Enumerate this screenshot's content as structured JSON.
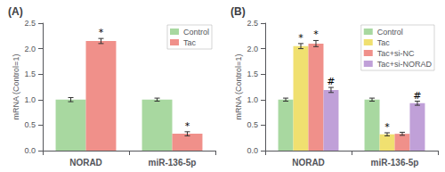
{
  "chart_data": [
    {
      "type": "bar",
      "title": "(A)",
      "ylabel": "mRNA (Control=1)",
      "categories": [
        "NORAD",
        "miR-136-5p"
      ],
      "series": [
        {
          "name": "Control",
          "color": "#a8d8a0",
          "values": [
            1.0,
            1.0
          ],
          "errors": [
            0.04,
            0.03
          ]
        },
        {
          "name": "Tac",
          "color": "#f0908a",
          "values": [
            2.15,
            0.33
          ],
          "errors": [
            0.05,
            0.04
          ]
        }
      ],
      "annotations": [
        {
          "text": "*",
          "series": "Tac",
          "category": "NORAD"
        },
        {
          "text": "*",
          "series": "Tac",
          "category": "miR-136-5p"
        }
      ],
      "ylim": [
        0,
        2.5
      ],
      "yticks": [
        {
          "value": 0,
          "label": "0.0"
        },
        0.5,
        {
          "value": 1,
          "label": "1.0"
        },
        1.5,
        {
          "value": 2,
          "label": "2.0"
        },
        2.5
      ],
      "legend": "upper right",
      "grid": false
    },
    {
      "type": "bar",
      "title": "(B)",
      "ylabel": "mRNA (Control=1)",
      "categories": [
        "NORAD",
        "miR-136-5p"
      ],
      "series": [
        {
          "name": "Control",
          "color": "#a8d8a0",
          "values": [
            1.0,
            1.0
          ],
          "errors": [
            0.03,
            0.03
          ]
        },
        {
          "name": "Tac",
          "color": "#f0e070",
          "values": [
            2.05,
            0.32
          ],
          "errors": [
            0.05,
            0.03
          ]
        },
        {
          "name": "Tac+si-NC",
          "color": "#f0908a",
          "values": [
            2.1,
            0.33
          ],
          "errors": [
            0.06,
            0.03
          ]
        },
        {
          "name": "Tac+si-NORAD",
          "color": "#c0a0d8",
          "values": [
            1.19,
            0.93
          ],
          "errors": [
            0.05,
            0.04
          ]
        }
      ],
      "annotations": [
        {
          "text": "*",
          "series": "Tac",
          "category": "NORAD"
        },
        {
          "text": "*",
          "series": "Tac+si-NC",
          "category": "NORAD"
        },
        {
          "text": "#",
          "series": "Tac+si-NORAD",
          "category": "NORAD"
        },
        {
          "text": "*",
          "series": "Tac",
          "category": "miR-136-5p"
        },
        {
          "text": "#",
          "series": "Tac+si-NORAD",
          "category": "miR-136-5p"
        }
      ],
      "ylim": [
        0,
        2.5
      ],
      "yticks": [
        {
          "value": 0,
          "label": "0.0"
        },
        0.5,
        {
          "value": 1,
          "label": "1.0"
        },
        1.5,
        {
          "value": 2,
          "label": "2.0"
        },
        2.5
      ],
      "legend": "upper right",
      "grid": false
    }
  ]
}
